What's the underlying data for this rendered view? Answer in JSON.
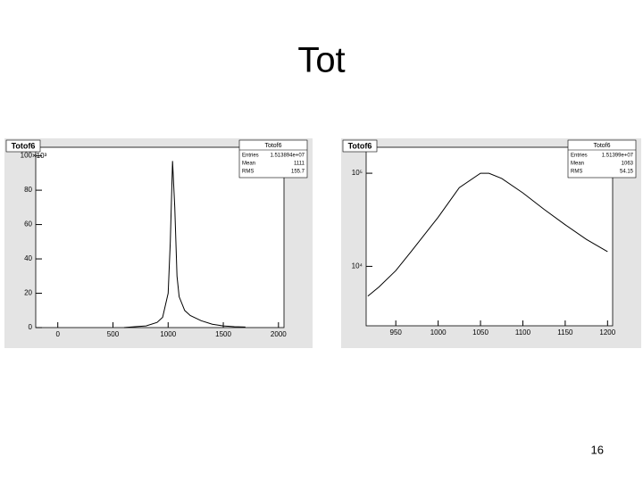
{
  "title": "Tot",
  "page_number": "16",
  "chart_data": [
    {
      "type": "line",
      "title": "Totof6",
      "multiplier": "×10³",
      "color": "#000000",
      "log_y": false,
      "stats_title": "Totof6",
      "stats": [
        {
          "label": "Entries",
          "value": "1.513894e+07"
        },
        {
          "label": "Mean",
          "value": "1111"
        },
        {
          "label": "RMS",
          "value": "155.7"
        }
      ],
      "x": [
        600,
        700,
        800,
        900,
        950,
        1000,
        1020,
        1040,
        1060,
        1080,
        1100,
        1150,
        1200,
        1300,
        1400,
        1500,
        1600,
        1700
      ],
      "values": [
        0,
        0.5,
        1,
        3,
        6,
        20,
        50,
        97,
        70,
        30,
        18,
        10,
        7,
        4,
        2,
        1,
        0.5,
        0.3
      ],
      "xlim": [
        -200,
        2050
      ],
      "xticks": [
        0,
        500,
        1000,
        1500,
        2000
      ],
      "ylim": [
        0,
        105
      ],
      "yticks": [
        0,
        20,
        40,
        60,
        80,
        100
      ]
    },
    {
      "type": "line",
      "title": "Totof6",
      "color": "#000000",
      "log_y": true,
      "stats_title": "Totof6",
      "stats": [
        {
          "label": "Entries",
          "value": "1.51399e+07"
        },
        {
          "label": "Mean",
          "value": "1063"
        },
        {
          "label": "RMS",
          "value": "54.15"
        }
      ],
      "x": [
        917,
        930,
        950,
        968,
        1000,
        1025,
        1050,
        1060,
        1075,
        1100,
        1125,
        1150,
        1175,
        1200
      ],
      "values": [
        4800,
        6000,
        9000,
        14400,
        33700,
        70000,
        100000,
        100000,
        88000,
        61500,
        41000,
        28000,
        19500,
        14400
      ],
      "xlim": [
        915,
        1206
      ],
      "xticks": [
        950,
        1000,
        1050,
        1100,
        1150,
        1200
      ],
      "ylim": [
        2300,
        190000
      ],
      "yticks": [
        {
          "value": 10000,
          "label": "10⁴"
        },
        {
          "value": 100000,
          "label": "10⁵"
        }
      ]
    }
  ]
}
